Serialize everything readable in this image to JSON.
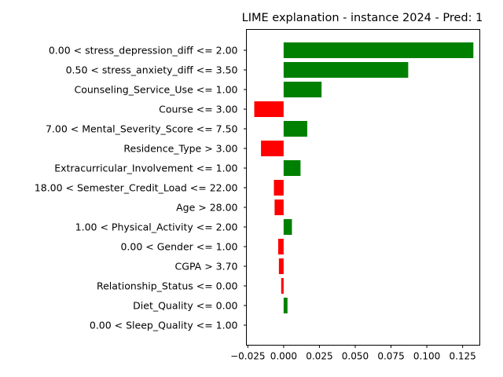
{
  "chart_data": {
    "type": "bar",
    "orientation": "horizontal",
    "title": "LIME explanation - instance 2024 - Pred: 1",
    "xlabel": "",
    "ylabel": "",
    "xlim": [
      -0.026,
      0.137
    ],
    "grid": false,
    "legend": "none",
    "x_ticks": [
      -0.025,
      0.0,
      0.025,
      0.05,
      0.075,
      0.1,
      0.125
    ],
    "x_tick_labels": [
      "−0.025",
      "0.000",
      "0.025",
      "0.050",
      "0.075",
      "0.100",
      "0.125"
    ],
    "colors": {
      "positive": "#008000",
      "negative": "#ff0000"
    },
    "categories": [
      "0.00 < stress_depression_diff <= 2.00",
      "0.50 < stress_anxiety_diff <= 3.50",
      "Counseling_Service_Use <= 1.00",
      "Course <= 3.00",
      "7.00 < Mental_Severity_Score <= 7.50",
      "Residence_Type > 3.00",
      "Extracurricular_Involvement <= 1.00",
      "18.00 < Semester_Credit_Load <= 22.00",
      "Age > 28.00",
      "1.00 < Physical_Activity <= 2.00",
      "0.00 < Gender <= 1.00",
      "CGPA > 3.70",
      "Relationship_Status <= 0.00",
      "Diet_Quality <= 0.00",
      "0.00 < Sleep_Quality <= 1.00"
    ],
    "values": [
      0.1325,
      0.087,
      0.0265,
      -0.0205,
      0.0165,
      -0.0158,
      0.0118,
      -0.0068,
      -0.0063,
      0.0058,
      -0.0038,
      -0.0033,
      -0.0017,
      0.0027,
      0.0
    ]
  }
}
